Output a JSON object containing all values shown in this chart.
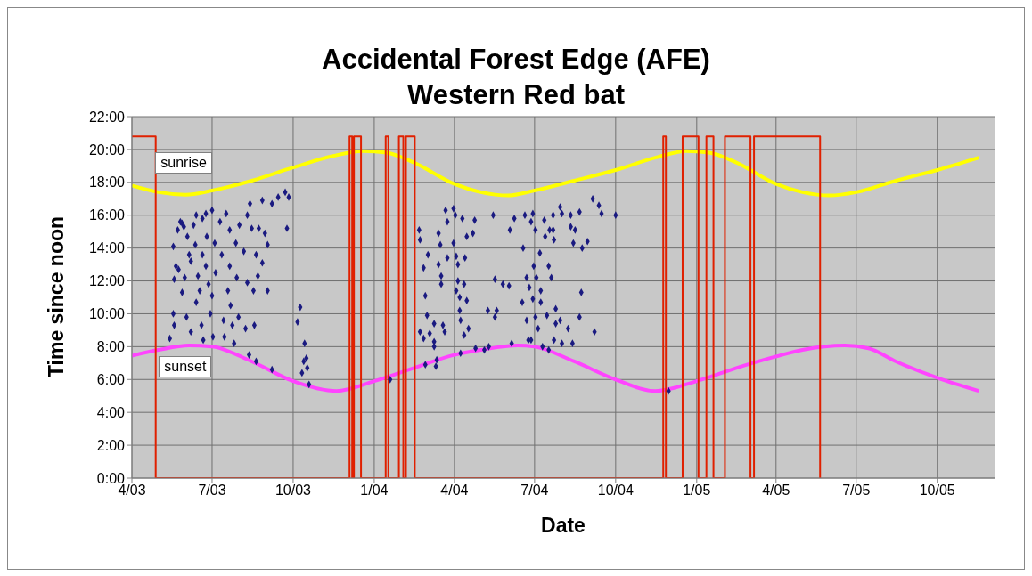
{
  "chart_data": {
    "type": "scatter",
    "title": "Accidental Forest Edge (AFE)",
    "subtitle": "Western Red bat",
    "xlabel": "Date",
    "ylabel": "Time since noon",
    "xlim": [
      "2003-04-01",
      "2005-12-05"
    ],
    "xticks": [
      {
        "value": "2003-04-01",
        "label": "4/03"
      },
      {
        "value": "2003-07-01",
        "label": "7/03"
      },
      {
        "value": "2003-10-01",
        "label": "10/03"
      },
      {
        "value": "2004-01-01",
        "label": "1/04"
      },
      {
        "value": "2004-04-01",
        "label": "4/04"
      },
      {
        "value": "2004-07-01",
        "label": "7/04"
      },
      {
        "value": "2004-10-01",
        "label": "10/04"
      },
      {
        "value": "2005-01-01",
        "label": "1/05"
      },
      {
        "value": "2005-04-01",
        "label": "4/05"
      },
      {
        "value": "2005-07-01",
        "label": "7/05"
      },
      {
        "value": "2005-10-01",
        "label": "10/05"
      }
    ],
    "ylim": [
      0,
      22
    ],
    "yticks": [
      {
        "value": 0,
        "label": "0:00"
      },
      {
        "value": 2,
        "label": "2:00"
      },
      {
        "value": 4,
        "label": "4:00"
      },
      {
        "value": 6,
        "label": "6:00"
      },
      {
        "value": 8,
        "label": "8:00"
      },
      {
        "value": 10,
        "label": "10:00"
      },
      {
        "value": 12,
        "label": "12:00"
      },
      {
        "value": 14,
        "label": "14:00"
      },
      {
        "value": 16,
        "label": "16:00"
      },
      {
        "value": 18,
        "label": "18:00"
      },
      {
        "value": 20,
        "label": "20:00"
      },
      {
        "value": 22,
        "label": "22:00"
      }
    ],
    "grid": true,
    "series": [
      {
        "type": "line",
        "name": "sunrise",
        "color": "#ffff00",
        "marker": "none",
        "x": [
          "2003-04-01",
          "2003-05-01",
          "2003-06-01",
          "2003-07-01",
          "2003-08-15",
          "2003-10-01",
          "2003-11-15",
          "2003-12-20",
          "2004-01-15",
          "2004-02-15",
          "2004-04-01",
          "2004-05-01",
          "2004-06-01",
          "2004-07-01",
          "2004-08-15",
          "2004-10-01",
          "2004-11-15",
          "2004-12-20",
          "2005-01-15",
          "2005-02-15",
          "2005-04-01",
          "2005-05-01",
          "2005-06-01",
          "2005-07-01",
          "2005-08-15",
          "2005-10-01",
          "2005-11-17"
        ],
        "values": [
          17.8,
          17.4,
          17.25,
          17.5,
          18.1,
          18.9,
          19.6,
          19.9,
          19.8,
          19.2,
          17.9,
          17.4,
          17.2,
          17.5,
          18.1,
          18.75,
          19.5,
          19.9,
          19.8,
          19.2,
          17.9,
          17.4,
          17.2,
          17.4,
          18.1,
          18.75,
          19.5
        ]
      },
      {
        "type": "line",
        "name": "sunset",
        "color": "#ff44ff",
        "marker": "none",
        "x": [
          "2003-04-01",
          "2003-05-01",
          "2003-06-05",
          "2003-07-01",
          "2003-08-15",
          "2003-10-01",
          "2003-11-19",
          "2004-01-01",
          "2004-02-15",
          "2004-04-01",
          "2004-05-01",
          "2004-06-12",
          "2004-07-01",
          "2004-08-15",
          "2004-10-01",
          "2004-11-15",
          "2005-01-01",
          "2005-02-15",
          "2005-04-01",
          "2005-05-01",
          "2005-06-18",
          "2005-07-15",
          "2005-08-15",
          "2005-10-01",
          "2005-11-17"
        ],
        "values": [
          7.45,
          7.8,
          8.07,
          8.0,
          7.1,
          5.9,
          5.3,
          5.9,
          6.7,
          7.5,
          7.8,
          8.07,
          8.0,
          7.1,
          6.0,
          5.3,
          5.9,
          6.7,
          7.4,
          7.8,
          8.07,
          7.9,
          7.1,
          6.1,
          5.3
        ]
      },
      {
        "type": "step",
        "color": "#e02000",
        "marker": "none",
        "x": [
          "2003-04-01",
          "2003-04-28",
          "2003-12-04",
          "2003-12-07",
          "2003-12-09",
          "2003-12-17",
          "2004-01-14",
          "2004-01-17",
          "2004-01-29",
          "2004-02-03",
          "2004-02-06",
          "2004-02-16",
          "2004-11-24",
          "2004-11-27",
          "2004-12-16",
          "2005-01-03",
          "2005-01-12",
          "2005-01-20",
          "2005-02-02",
          "2005-03-03",
          "2005-03-07",
          "2005-05-21"
        ],
        "values": [
          20.8,
          0,
          20.8,
          0,
          20.8,
          0,
          20.8,
          0,
          20.8,
          0,
          20.8,
          0,
          20.8,
          0,
          20.8,
          0,
          20.8,
          0,
          20.8,
          0,
          20.8,
          0
        ]
      },
      {
        "color": "#1a1a80",
        "marker": "diamond",
        "x": [
          "2003-05-18",
          "2003-05-21",
          "2003-05-19",
          "2003-05-18",
          "2003-05-19",
          "2003-05-14",
          "2003-05-23",
          "2003-05-26",
          "2003-05-28",
          "2003-05-30",
          "2003-05-24",
          "2003-05-28",
          "2003-05-31",
          "2003-06-02",
          "2003-06-03",
          "2003-06-05",
          "2003-06-07",
          "2003-06-07",
          "2003-06-10",
          "2003-06-12",
          "2003-06-13",
          "2003-06-13",
          "2003-06-15",
          "2003-06-17",
          "2003-06-19",
          "2003-06-20",
          "2003-06-20",
          "2003-06-21",
          "2003-06-24",
          "2003-06-24",
          "2003-06-25",
          "2003-06-27",
          "2003-06-29",
          "2003-07-01",
          "2003-07-01",
          "2003-07-02",
          "2003-07-04",
          "2003-07-05",
          "2003-07-10",
          "2003-07-12",
          "2003-07-14",
          "2003-07-15",
          "2003-07-17",
          "2003-07-19",
          "2003-07-21",
          "2003-07-21",
          "2003-07-22",
          "2003-07-24",
          "2003-07-26",
          "2003-07-28",
          "2003-07-29",
          "2003-07-31",
          "2003-08-01",
          "2003-08-06",
          "2003-08-08",
          "2003-08-10",
          "2003-08-10",
          "2003-08-12",
          "2003-08-13",
          "2003-08-15",
          "2003-08-17",
          "2003-08-18",
          "2003-08-20",
          "2003-08-20",
          "2003-08-22",
          "2003-08-23",
          "2003-08-27",
          "2003-08-27",
          "2003-08-30",
          "2003-09-02",
          "2003-09-02",
          "2003-09-07",
          "2003-09-07",
          "2003-09-14",
          "2003-09-22",
          "2003-09-24",
          "2003-09-26",
          "2003-10-06",
          "2003-10-09",
          "2003-10-11",
          "2003-10-13",
          "2003-10-14",
          "2003-10-16",
          "2003-10-17",
          "2003-10-19",
          "2004-01-19",
          "2004-02-21",
          "2004-02-22",
          "2004-02-26",
          "2004-02-28",
          "2004-03-01",
          "2004-02-22",
          "2004-02-26",
          "2004-02-28",
          "2004-03-02",
          "2004-03-04",
          "2004-03-09",
          "2004-03-09",
          "2004-03-09",
          "2004-03-11",
          "2004-03-12",
          "2004-03-14",
          "2004-03-14",
          "2004-03-16",
          "2004-03-17",
          "2004-03-17",
          "2004-03-19",
          "2004-03-21",
          "2004-03-22",
          "2004-03-24",
          "2004-03-24",
          "2004-03-31",
          "2004-03-31",
          "2004-04-02",
          "2004-04-03",
          "2004-04-03",
          "2004-04-05",
          "2004-04-05",
          "2004-04-07",
          "2004-04-07",
          "2004-04-08",
          "2004-04-08",
          "2004-04-10",
          "2004-04-12",
          "2004-04-12",
          "2004-04-13",
          "2004-04-15",
          "2004-04-15",
          "2004-04-17",
          "2004-04-22",
          "2004-04-24",
          "2004-04-25",
          "2004-05-05",
          "2004-05-09",
          "2004-05-10",
          "2004-05-15",
          "2004-05-17",
          "2004-05-17",
          "2004-05-19",
          "2004-05-26",
          "2004-06-02",
          "2004-06-03",
          "2004-06-05",
          "2004-06-08",
          "2004-06-17",
          "2004-06-18",
          "2004-06-20",
          "2004-06-22",
          "2004-06-22",
          "2004-06-24",
          "2004-06-25",
          "2004-06-27",
          "2004-06-27",
          "2004-06-29",
          "2004-06-29",
          "2004-06-30",
          "2004-07-02",
          "2004-07-02",
          "2004-07-03",
          "2004-07-05",
          "2004-07-07",
          "2004-07-08",
          "2004-07-08",
          "2004-07-10",
          "2004-07-12",
          "2004-07-13",
          "2004-07-15",
          "2004-07-17",
          "2004-07-17",
          "2004-07-18",
          "2004-07-20",
          "2004-07-22",
          "2004-07-22",
          "2004-07-23",
          "2004-07-23",
          "2004-07-25",
          "2004-07-25",
          "2004-07-30",
          "2004-07-30",
          "2004-08-01",
          "2004-08-01",
          "2004-08-08",
          "2004-08-11",
          "2004-08-11",
          "2004-08-13",
          "2004-08-14",
          "2004-08-16",
          "2004-08-21",
          "2004-08-21",
          "2004-08-23",
          "2004-08-24",
          "2004-08-30",
          "2004-09-05",
          "2004-09-07",
          "2004-09-12",
          "2004-09-15",
          "2004-10-01",
          "2004-11-30"
        ],
        "values": [
          14.1,
          12.9,
          12.1,
          10.0,
          9.3,
          8.5,
          15.1,
          15.6,
          15.5,
          15.3,
          12.7,
          11.3,
          12.2,
          9.8,
          14.7,
          13.6,
          13.2,
          8.9,
          15.4,
          14.2,
          16.0,
          10.7,
          12.3,
          11.4,
          9.3,
          15.8,
          13.6,
          8.4,
          16.1,
          12.9,
          14.7,
          11.8,
          10.0,
          16.3,
          11.1,
          8.6,
          14.3,
          12.5,
          15.6,
          13.6,
          9.6,
          8.6,
          16.1,
          11.4,
          15.1,
          12.9,
          10.5,
          9.3,
          8.2,
          14.3,
          12.2,
          9.8,
          15.4,
          13.8,
          9.1,
          16.0,
          11.9,
          7.5,
          16.7,
          15.2,
          11.4,
          9.3,
          13.6,
          7.1,
          12.3,
          15.2,
          13.1,
          16.9,
          14.9,
          14.2,
          11.4,
          16.7,
          6.6,
          17.1,
          17.4,
          15.2,
          17.1,
          9.5,
          10.4,
          6.4,
          7.1,
          8.2,
          7.3,
          6.7,
          5.7,
          6.0,
          15.1,
          14.5,
          12.8,
          11.1,
          9.9,
          8.9,
          8.5,
          6.9,
          13.6,
          8.8,
          9.4,
          8.3,
          8.0,
          6.8,
          7.2,
          14.9,
          13.0,
          14.2,
          12.3,
          11.8,
          9.3,
          8.9,
          16.3,
          15.6,
          13.4,
          16.4,
          14.3,
          16.0,
          13.5,
          11.4,
          13.0,
          12.0,
          11.0,
          10.2,
          9.6,
          7.6,
          15.8,
          8.7,
          11.8,
          13.4,
          14.7,
          10.8,
          9.1,
          14.9,
          15.7,
          7.9,
          7.8,
          10.2,
          8.0,
          16.0,
          12.1,
          9.8,
          10.2,
          11.8,
          11.7,
          15.1,
          8.2,
          15.8,
          10.7,
          14.0,
          16.0,
          12.2,
          9.6,
          8.4,
          11.6,
          15.6,
          8.4,
          10.9,
          16.1,
          12.9,
          15.1,
          9.8,
          12.2,
          9.1,
          13.7,
          10.7,
          11.4,
          8.0,
          15.7,
          14.7,
          9.9,
          12.9,
          7.8,
          15.1,
          12.2,
          16.0,
          15.1,
          14.5,
          8.4,
          10.3,
          9.4,
          16.5,
          9.6,
          16.1,
          8.2,
          9.1,
          16.0,
          15.3,
          8.2,
          14.3,
          15.1,
          16.2,
          9.8,
          11.3,
          14.0,
          14.4,
          17.0,
          8.9,
          16.6,
          16.1,
          16.0,
          5.3
        ]
      }
    ]
  }
}
